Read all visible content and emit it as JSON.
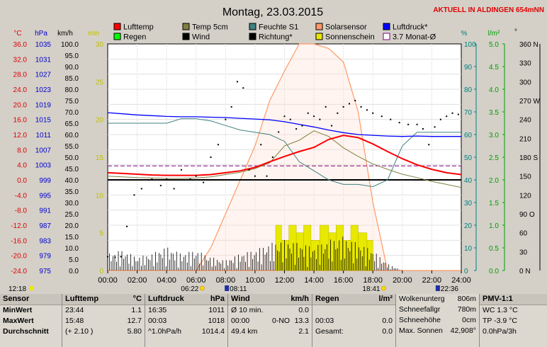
{
  "header": {
    "title": "Montag, 23.03.2015",
    "live_label": "AKTUELL IN ALDINGEN 654mNN"
  },
  "axes": {
    "celsius": {
      "unit": "°C",
      "ticks": [
        "36.0",
        "32.0",
        "28.0",
        "24.0",
        "20.0",
        "16.0",
        "12.0",
        "8.0",
        "4.0",
        "0.0",
        "-4.0",
        "-8.0",
        "-12.0",
        "-16.0",
        "-20.0",
        "-24.0"
      ]
    },
    "hpa": {
      "unit": "hPa",
      "ticks": [
        "1035",
        "1031",
        "1027",
        "1023",
        "1019",
        "1015",
        "1011",
        "1007",
        "1003",
        "999",
        "995",
        "991",
        "987",
        "983",
        "979",
        "975"
      ]
    },
    "kmh": {
      "unit": "km/h",
      "ticks": [
        "100.0",
        "95.0",
        "90.0",
        "85.0",
        "80.0",
        "75.0",
        "70.0",
        "65.0",
        "60.0",
        "55.0",
        "50.0",
        "45.0",
        "40.0",
        "35.0",
        "30.0",
        "25.0",
        "20.0",
        "15.0",
        "10.0",
        "5.0",
        "0.0"
      ]
    },
    "min": {
      "unit": "min",
      "ticks": [
        "30",
        "25",
        "20",
        "15",
        "10",
        "5",
        "0"
      ]
    },
    "percent": {
      "unit": "%",
      "ticks": [
        "100",
        "90",
        "80",
        "70",
        "60",
        "50",
        "40",
        "30",
        "20",
        "10",
        "0"
      ]
    },
    "lm2": {
      "unit": "l/m²",
      "ticks": [
        "5.0",
        "4.5",
        "4.0",
        "3.5",
        "3.0",
        "2.5",
        "2.0",
        "1.5",
        "1.0",
        "0.5",
        "0.0"
      ]
    },
    "direction": {
      "unit": "°",
      "ticks": [
        "360 N",
        "330",
        "300",
        "270 W",
        "240",
        "210",
        "180 S",
        "150",
        "120",
        "90 O",
        "60",
        "30",
        "0 N"
      ]
    },
    "time": {
      "ticks": [
        "00:00",
        "02:00",
        "04:00",
        "06:00",
        "08:00",
        "10:00",
        "12:00",
        "14:00",
        "16:00",
        "18:00",
        "20:00",
        "22:00",
        "24:00"
      ]
    }
  },
  "legend": [
    {
      "label": "Lufttemp",
      "color": "#ff0000"
    },
    {
      "label": "Temp 5cm",
      "color": "#808040"
    },
    {
      "label": "Feuchte S1",
      "color": "#408080"
    },
    {
      "label": "Solarsensor",
      "color": "#ff9966"
    },
    {
      "label": "Luftdruck*",
      "color": "#0000ff"
    },
    {
      "label": "Regen",
      "color": "#00ff00"
    },
    {
      "label": "Wind",
      "color": "#000000"
    },
    {
      "label": "Richtung*",
      "color": "#000000"
    },
    {
      "label": "Sonnenschein",
      "color": "#e8e800"
    },
    {
      "label": "3.7 Monat-Ø",
      "color": "#800080"
    }
  ],
  "markers": {
    "now": "12:18",
    "sunrise": "06:22",
    "sunset": "18:41",
    "moonrise": "08:11",
    "moonset": "22:36"
  },
  "chart_data": {
    "type": "line",
    "title": "Montag, 23.03.2015",
    "x": [
      "00:00",
      "01:00",
      "02:00",
      "03:00",
      "04:00",
      "05:00",
      "06:00",
      "07:00",
      "08:00",
      "09:00",
      "10:00",
      "11:00",
      "12:00",
      "13:00",
      "14:00",
      "15:00",
      "16:00",
      "17:00",
      "18:00",
      "19:00",
      "20:00",
      "21:00",
      "22:00",
      "23:00",
      "24:00"
    ],
    "xlim_hours": [
      0,
      24
    ],
    "series": [
      {
        "name": "Lufttemp",
        "axis": "celsius",
        "color": "#ff0000",
        "values": [
          1.9,
          1.7,
          1.5,
          1.3,
          1.2,
          1.2,
          1.2,
          1.4,
          1.9,
          2.4,
          3.3,
          4.8,
          6.2,
          7.5,
          8.6,
          10.7,
          11.8,
          11.2,
          9.5,
          7.5,
          5.6,
          4.0,
          2.8,
          1.9,
          1.4
        ]
      },
      {
        "name": "Temp 5cm",
        "axis": "celsius",
        "color": "#808040",
        "values": [
          1.0,
          0.8,
          0.6,
          0.5,
          0.4,
          0.4,
          0.5,
          0.8,
          1.4,
          2.0,
          3.0,
          4.5,
          9.0,
          10.5,
          13.0,
          11.5,
          8.5,
          6.2,
          4.2,
          2.8,
          1.5,
          0.6,
          -0.4,
          -1.2,
          -2.0
        ]
      },
      {
        "name": "Feuchte S1",
        "axis": "percent",
        "color": "#408080",
        "values": [
          65,
          65,
          65,
          65,
          65,
          67,
          67,
          66,
          64,
          62,
          61,
          60,
          57,
          48,
          44,
          40,
          38,
          38,
          37,
          40,
          55,
          61,
          61,
          61,
          61
        ]
      },
      {
        "name": "Luftdruck*",
        "axis": "hpa",
        "color": "#0000ff",
        "values": [
          1016.8,
          1016.5,
          1016.2,
          1016.0,
          1015.8,
          1015.7,
          1015.7,
          1015.6,
          1015.5,
          1015.3,
          1015.1,
          1014.9,
          1014.4,
          1013.7,
          1013.0,
          1012.2,
          1011.5,
          1011.0,
          1010.8,
          1010.6,
          1010.5,
          1010.6,
          1010.5,
          1010.5,
          1010.5
        ]
      },
      {
        "name": "Solarsensor",
        "axis": "percent",
        "color": "#ff9966",
        "values": [
          0,
          0,
          0,
          0,
          0,
          0,
          0,
          10,
          25,
          40,
          55,
          75,
          88,
          100,
          100,
          98,
          92,
          70,
          30,
          0,
          0,
          0,
          0,
          0,
          0
        ]
      },
      {
        "name": "3.7 Monat-Ø",
        "axis": "celsius",
        "color": "#800080",
        "values": [
          3.7,
          3.7,
          3.7,
          3.7,
          3.7,
          3.7,
          3.7,
          3.7,
          3.7,
          3.7,
          3.7,
          3.7,
          3.7,
          3.7,
          3.7,
          3.7,
          3.7,
          3.7,
          3.7,
          3.7,
          3.7,
          3.7,
          3.7,
          3.7,
          3.7
        ]
      },
      {
        "name": "Wind",
        "axis": "kmh",
        "color": "#000000",
        "values": [
          5,
          6,
          4,
          5,
          7,
          5,
          6,
          4,
          3,
          5,
          6,
          8,
          9,
          8,
          7,
          9,
          10,
          8,
          6,
          2,
          0,
          0,
          0,
          0,
          0
        ]
      }
    ],
    "richtung_points": [
      [
        0.0,
        22
      ],
      [
        0.5,
        21
      ],
      [
        0.9,
        22
      ],
      [
        1.3,
        70
      ],
      [
        1.8,
        120
      ],
      [
        2.3,
        130
      ],
      [
        3.0,
        145
      ],
      [
        3.6,
        135
      ],
      [
        4.0,
        145
      ],
      [
        4.5,
        130
      ],
      [
        5.0,
        160
      ],
      [
        5.6,
        145
      ],
      [
        6.0,
        150
      ],
      [
        6.5,
        140
      ],
      [
        7.0,
        180
      ],
      [
        7.5,
        200
      ],
      [
        8.0,
        240
      ],
      [
        8.4,
        260
      ],
      [
        8.8,
        300
      ],
      [
        9.2,
        290
      ],
      [
        9.6,
        160
      ],
      [
        10.0,
        150
      ],
      [
        10.4,
        200
      ],
      [
        10.8,
        150
      ],
      [
        11.2,
        180
      ],
      [
        11.6,
        220
      ],
      [
        12.0,
        245
      ],
      [
        12.4,
        240
      ],
      [
        12.8,
        225
      ],
      [
        13.2,
        230
      ],
      [
        13.6,
        250
      ],
      [
        14.0,
        245
      ],
      [
        14.4,
        240
      ],
      [
        14.8,
        260
      ],
      [
        15.2,
        230
      ],
      [
        15.6,
        250
      ],
      [
        16.0,
        260
      ],
      [
        16.4,
        265
      ],
      [
        16.8,
        270
      ],
      [
        17.2,
        260
      ],
      [
        17.6,
        255
      ],
      [
        18.0,
        250
      ],
      [
        18.6,
        245
      ],
      [
        19.2,
        240
      ],
      [
        19.8,
        235
      ],
      [
        20.4,
        232
      ],
      [
        21.0,
        232
      ],
      [
        21.4,
        225
      ],
      [
        21.8,
        200
      ],
      [
        22.2,
        228
      ],
      [
        22.6,
        240
      ],
      [
        23.0,
        245
      ],
      [
        23.4,
        250
      ],
      [
        23.8,
        248
      ]
    ],
    "sunshine_blocks": [
      [
        11.4,
        11.8,
        6
      ],
      [
        11.8,
        12.3,
        4
      ],
      [
        12.3,
        12.8,
        6
      ],
      [
        12.8,
        13.3,
        5
      ],
      [
        13.3,
        13.8,
        6
      ],
      [
        13.8,
        14.4,
        4
      ],
      [
        14.4,
        15.0,
        6
      ],
      [
        15.0,
        15.5,
        5
      ],
      [
        15.5,
        16.0,
        6
      ],
      [
        16.0,
        16.5,
        4
      ],
      [
        16.5,
        17.0,
        6
      ],
      [
        17.0,
        17.6,
        5
      ],
      [
        17.6,
        18.0,
        4
      ]
    ],
    "ylabel": "°C"
  },
  "table": {
    "sensor": {
      "header": "Sensor",
      "rows": [
        "MinWert",
        "MaxWert",
        "Durchschnitt"
      ]
    },
    "lufttemp": {
      "header": "Lufttemp",
      "unit": "°C",
      "rows": [
        {
          "a": "23:44",
          "v": "1.1"
        },
        {
          "a": "15:48",
          "v": "12.7"
        },
        {
          "a": "(+ 2.10 )",
          "v": "5.80"
        }
      ]
    },
    "luftdruck": {
      "header": "Luftdruck",
      "unit": "hPa",
      "rows": [
        {
          "a": "16:35",
          "v": "1011"
        },
        {
          "a": "00:03",
          "v": "1018"
        },
        {
          "a": "^1.0hPa/h",
          "v": "1014.4"
        }
      ]
    },
    "wind": {
      "header": "Wind",
      "unit": "km/h",
      "rows": [
        {
          "a": "Ø 10 min.",
          "v": "0.0"
        },
        {
          "a": "00:00",
          "b": "0-NO",
          "v": "13.3"
        },
        {
          "a": "49.4 km",
          "v": "2.1"
        }
      ]
    },
    "regen": {
      "header": "Regen",
      "unit": "l/m²",
      "rows": [
        {
          "a": "",
          "v": ""
        },
        {
          "a": "00:03",
          "v": "0.0"
        },
        {
          "a": "Gesamt:",
          "v": "0.0"
        }
      ]
    },
    "wolken": {
      "rows": [
        {
          "a": "Wolkenunterg",
          "v": "806m"
        },
        {
          "a": "Schneefallgr",
          "v": "780m"
        },
        {
          "a": "Schneehöhe",
          "v": "0cm"
        },
        {
          "a": "Max. Sonnen",
          "v": "42,908°"
        }
      ]
    },
    "pmv": {
      "header": "PMV-1:1",
      "rows": [
        "WC 1.3 °C",
        "TP -3.9 °C",
        "0.0hPa/3h"
      ]
    }
  }
}
